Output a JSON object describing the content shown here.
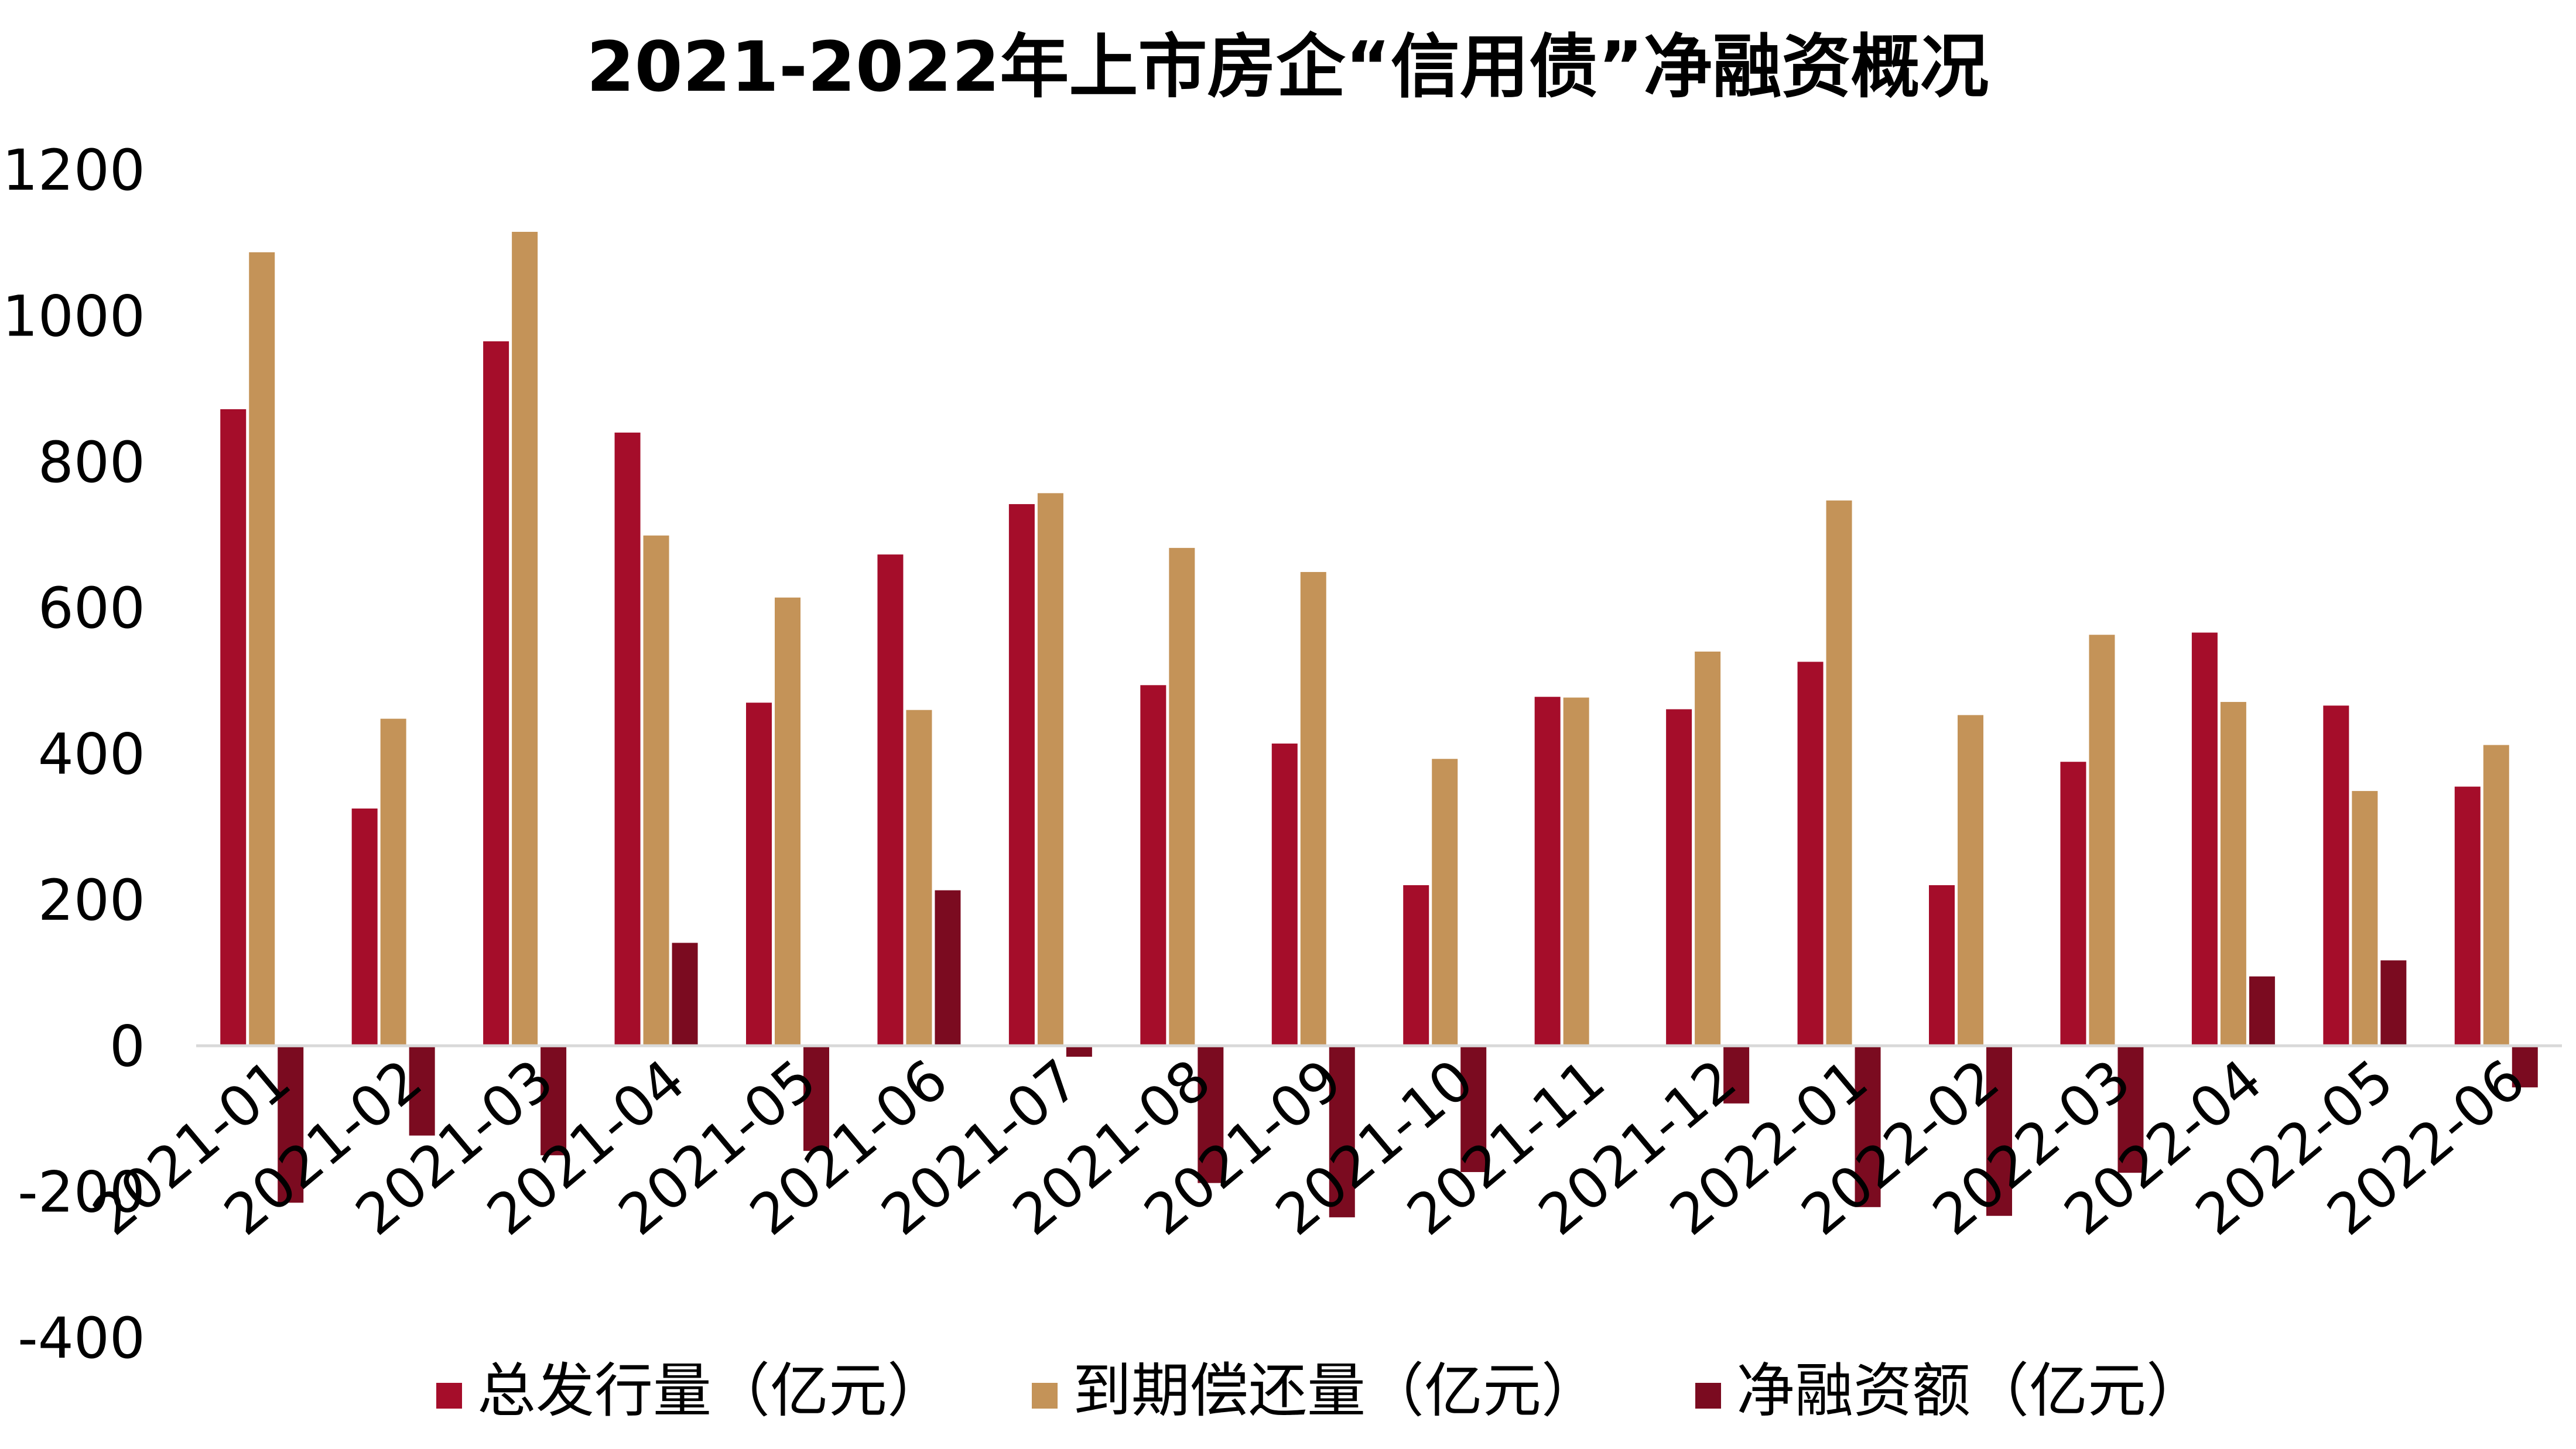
{
  "chart_data": {
    "type": "bar",
    "title": "2021-2022年上市房企“信用债”净融资概况",
    "xlabel": "",
    "ylabel": "",
    "ylim": [
      -400,
      1200
    ],
    "yticks": [
      1200,
      1000,
      800,
      600,
      400,
      200,
      0,
      -200,
      -400
    ],
    "grid": false,
    "legend_position": "bottom",
    "categories": [
      "2021-01",
      "2021-02",
      "2021-03",
      "2021-04",
      "2021-05",
      "2021-06",
      "2021-07",
      "2021-08",
      "2021-09",
      "2021-10",
      "2021-11",
      "2021-12",
      "2022-01",
      "2022-02",
      "2022-03",
      "2022-04",
      "2022-05",
      "2022-06"
    ],
    "series": [
      {
        "name": "总发行量（亿元）",
        "color": "#A50D2A",
        "values": [
          872,
          325,
          965,
          840,
          470,
          673,
          742,
          494,
          414,
          220,
          478,
          461,
          526,
          220,
          389,
          566,
          466,
          355
        ]
      },
      {
        "name": "到期偿还量（亿元）",
        "color": "#C49358",
        "values": [
          1087,
          448,
          1115,
          699,
          614,
          460,
          757,
          682,
          649,
          393,
          477,
          540,
          747,
          453,
          563,
          471,
          349,
          412
        ]
      },
      {
        "name": "净融资额（亿元）",
        "color": "#7B0B20",
        "values": [
          -215,
          -123,
          -150,
          141,
          -144,
          213,
          -15,
          -188,
          -235,
          -173,
          1,
          -79,
          -221,
          -233,
          -174,
          95,
          117,
          -57
        ]
      }
    ]
  }
}
